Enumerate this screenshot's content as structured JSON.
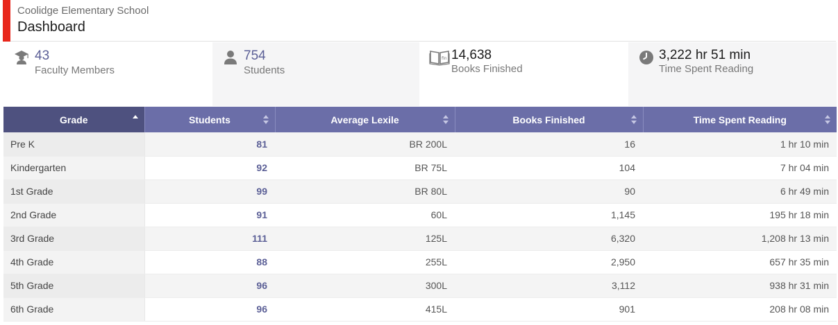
{
  "header": {
    "school_name": "Coolidge Elementary School",
    "title": "Dashboard",
    "accent_color": "#e8271c"
  },
  "stats": [
    {
      "icon": "graduation-cap-icon",
      "value": "43",
      "label": "Faculty Members"
    },
    {
      "icon": "person-icon",
      "value": "754",
      "label": "Students"
    },
    {
      "icon": "open-book-icon",
      "value": "14,638",
      "label": "Books Finished"
    },
    {
      "icon": "clock-icon",
      "value": "3,222 hr 51 min",
      "label": "Time Spent Reading"
    }
  ],
  "table": {
    "header_color": "#6b6ea8",
    "columns": [
      "Grade",
      "Students",
      "Average Lexile",
      "Books Finished",
      "Time Spent Reading"
    ],
    "sorted_column": "Grade",
    "sort_direction": "ascending",
    "rows": [
      [
        "Pre K",
        "81",
        "BR 200L",
        "16",
        "1 hr 10 min"
      ],
      [
        "Kindergarten",
        "92",
        "BR 75L",
        "104",
        "7 hr 04 min"
      ],
      [
        "1st Grade",
        "99",
        "BR 80L",
        "90",
        "6 hr 49 min"
      ],
      [
        "2nd Grade",
        "91",
        "60L",
        "1,145",
        "195 hr 18 min"
      ],
      [
        "3rd Grade",
        "111",
        "125L",
        "6,320",
        "1,208 hr 13 min"
      ],
      [
        "4th Grade",
        "88",
        "255L",
        "2,950",
        "657 hr 35 min"
      ],
      [
        "5th Grade",
        "96",
        "300L",
        "3,112",
        "938 hr 31 min"
      ],
      [
        "6th Grade",
        "96",
        "415L",
        "901",
        "208 hr 08 min"
      ]
    ]
  }
}
